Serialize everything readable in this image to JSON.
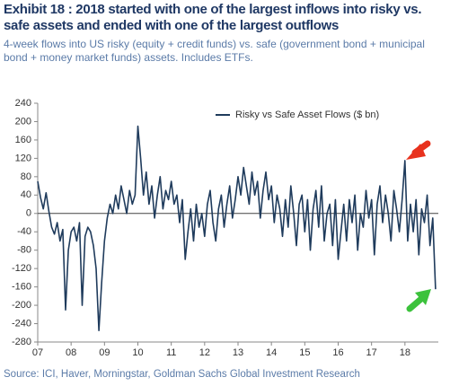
{
  "chart_data": {
    "type": "line",
    "title": "Exhibit 18 : 2018 started with one of the largest inflows into risky vs. safe assets and ended with one of the largest outflows",
    "subtitle": "4-week flows into US risky (equity + credit funds) vs. safe (government bond + municipal bond + money market funds) assets. Includes ETFs.",
    "source": "Source: ICI, Haver, Morningstar, Goldman Sachs Global Investment Research",
    "xlim": [
      2007,
      2019
    ],
    "xticks": [
      {
        "value": 2007,
        "label": "07"
      },
      {
        "value": 2008,
        "label": "08"
      },
      {
        "value": 2009,
        "label": "09"
      },
      {
        "value": 2010,
        "label": "10"
      },
      {
        "value": 2011,
        "label": "11"
      },
      {
        "value": 2012,
        "label": "12"
      },
      {
        "value": 2013,
        "label": "13"
      },
      {
        "value": 2014,
        "label": "14"
      },
      {
        "value": 2015,
        "label": "15"
      },
      {
        "value": 2016,
        "label": "16"
      },
      {
        "value": 2017,
        "label": "17"
      },
      {
        "value": 2018,
        "label": "18"
      }
    ],
    "ylim": [
      -280,
      240
    ],
    "yticks": [
      -280,
      -240,
      -200,
      -160,
      -120,
      -80,
      -40,
      0,
      40,
      80,
      120,
      160,
      200,
      240
    ],
    "legend": "top",
    "series": [
      {
        "name": "Risky vs Safe Asset Flows ($ bn)",
        "color": "#1f3b5c",
        "x": [
          2007.0,
          2007.083,
          2007.167,
          2007.25,
          2007.333,
          2007.417,
          2007.5,
          2007.583,
          2007.667,
          2007.75,
          2007.833,
          2007.917,
          2008.0,
          2008.083,
          2008.167,
          2008.25,
          2008.333,
          2008.417,
          2008.5,
          2008.583,
          2008.667,
          2008.75,
          2008.833,
          2008.917,
          2009.0,
          2009.083,
          2009.167,
          2009.25,
          2009.333,
          2009.417,
          2009.5,
          2009.583,
          2009.667,
          2009.75,
          2009.833,
          2009.917,
          2010.0,
          2010.083,
          2010.167,
          2010.25,
          2010.333,
          2010.417,
          2010.5,
          2010.583,
          2010.667,
          2010.75,
          2010.833,
          2010.917,
          2011.0,
          2011.083,
          2011.167,
          2011.25,
          2011.333,
          2011.417,
          2011.5,
          2011.583,
          2011.667,
          2011.75,
          2011.833,
          2011.917,
          2012.0,
          2012.083,
          2012.167,
          2012.25,
          2012.333,
          2012.417,
          2012.5,
          2012.583,
          2012.667,
          2012.75,
          2012.833,
          2012.917,
          2013.0,
          2013.083,
          2013.167,
          2013.25,
          2013.333,
          2013.417,
          2013.5,
          2013.583,
          2013.667,
          2013.75,
          2013.833,
          2013.917,
          2014.0,
          2014.083,
          2014.167,
          2014.25,
          2014.333,
          2014.417,
          2014.5,
          2014.583,
          2014.667,
          2014.75,
          2014.833,
          2014.917,
          2015.0,
          2015.083,
          2015.167,
          2015.25,
          2015.333,
          2015.417,
          2015.5,
          2015.583,
          2015.667,
          2015.75,
          2015.833,
          2015.917,
          2016.0,
          2016.083,
          2016.167,
          2016.25,
          2016.333,
          2016.417,
          2016.5,
          2016.583,
          2016.667,
          2016.75,
          2016.833,
          2016.917,
          2017.0,
          2017.083,
          2017.167,
          2017.25,
          2017.333,
          2017.417,
          2017.5,
          2017.583,
          2017.667,
          2017.75,
          2017.833,
          2017.917,
          2018.0,
          2018.083,
          2018.167,
          2018.25,
          2018.333,
          2018.417,
          2018.5,
          2018.583,
          2018.667,
          2018.75,
          2018.833,
          2018.917
        ],
        "values": [
          70,
          35,
          10,
          45,
          5,
          -30,
          -45,
          -20,
          -60,
          -35,
          -210,
          -80,
          -40,
          -30,
          -60,
          -20,
          -200,
          -50,
          -30,
          -40,
          -70,
          -120,
          -255,
          -150,
          -60,
          -10,
          20,
          0,
          40,
          10,
          60,
          30,
          0,
          50,
          20,
          40,
          190,
          120,
          40,
          90,
          20,
          60,
          -10,
          40,
          80,
          10,
          50,
          30,
          70,
          20,
          40,
          -20,
          30,
          -100,
          -40,
          10,
          -60,
          20,
          -30,
          0,
          -50,
          20,
          50,
          -20,
          -60,
          10,
          40,
          -30,
          20,
          60,
          -10,
          30,
          80,
          40,
          100,
          60,
          20,
          90,
          40,
          70,
          -10,
          50,
          90,
          30,
          60,
          -20,
          40,
          10,
          -50,
          30,
          -30,
          60,
          0,
          -70,
          20,
          40,
          -40,
          30,
          -80,
          10,
          50,
          -30,
          60,
          -60,
          0,
          20,
          -70,
          30,
          -100,
          -40,
          20,
          -60,
          30,
          -20,
          40,
          -80,
          0,
          -30,
          50,
          -10,
          30,
          -90,
          20,
          60,
          -20,
          40,
          0,
          -60,
          50,
          10,
          -40,
          30,
          115,
          -60,
          20,
          -40,
          30,
          -90,
          10,
          -20,
          40,
          -70,
          -10,
          -165
        ]
      }
    ]
  }
}
